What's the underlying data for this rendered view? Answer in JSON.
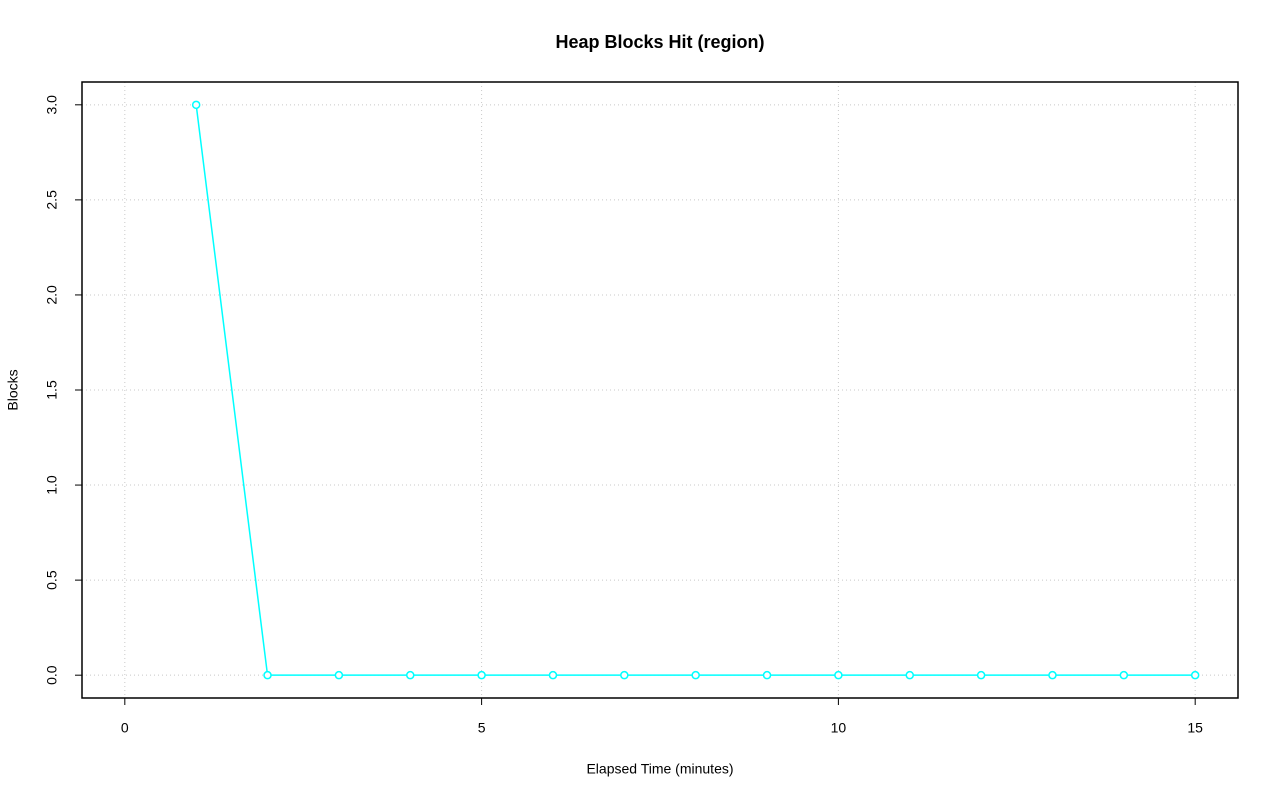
{
  "chart_data": {
    "type": "line",
    "title": "Heap Blocks Hit (region)",
    "x_label": "Elapsed Time (minutes)",
    "y_label": "Blocks",
    "x": [
      1,
      2,
      3,
      4,
      5,
      6,
      7,
      8,
      9,
      10,
      11,
      12,
      13,
      14,
      15
    ],
    "series": [
      {
        "color": "#00ffff",
        "values": [
          3,
          0,
          0,
          0,
          0,
          0,
          0,
          0,
          0,
          0,
          0,
          0,
          0,
          0,
          0
        ]
      }
    ],
    "xlim": [
      -0.6,
      15.6
    ],
    "xticks": [
      0,
      5,
      10,
      15
    ],
    "ylim": [
      -0.12,
      3.12
    ],
    "yticks": [
      {
        "value": 0,
        "label": "0.0"
      },
      0.5,
      {
        "value": 1,
        "label": "1.0"
      },
      1.5,
      {
        "value": 2,
        "label": "2.0"
      },
      2.5,
      {
        "value": 3,
        "label": "3.0"
      }
    ],
    "grid": true
  }
}
